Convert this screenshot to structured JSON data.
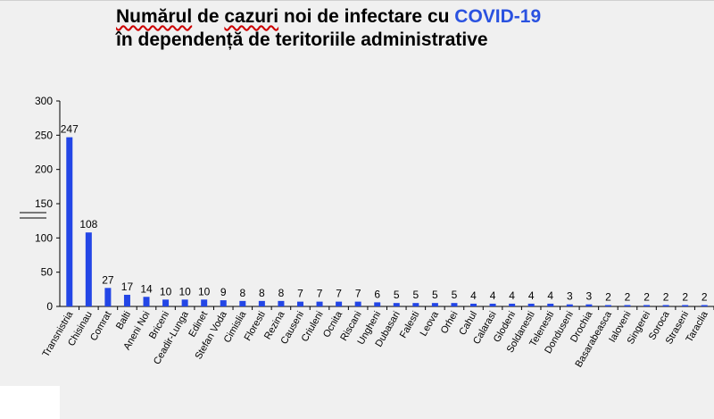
{
  "title": {
    "line1_a": "Numărul",
    "line1_b": " de ",
    "line1_c": "cazuri",
    "line1_d": " noi de infectare cu ",
    "line1_highlight": "COVID-19",
    "line2": "în dependență de teritoriile administrative"
  },
  "colors": {
    "bar": "#2346e6",
    "highlight": "#2a52e0"
  },
  "chart_data": {
    "type": "bar",
    "title": "Numărul de cazuri noi de infectare cu COVID-19 în dependență de teritoriile administrative",
    "xlabel": "",
    "ylabel": "",
    "ylim": [
      0,
      300
    ],
    "yticks": [
      0,
      50,
      100,
      150,
      200,
      250,
      300
    ],
    "grid": false,
    "categories": [
      "Transnistria",
      "Chisinau",
      "Comrat",
      "Balti",
      "Aneni Noi",
      "Briceni",
      "Ceadir-Lunga",
      "Edinet",
      "Stefan Voda",
      "Cimislia",
      "Floresti",
      "Rezina",
      "Causeni",
      "Criuleni",
      "Ocnita",
      "Riscani",
      "Ungheni",
      "Dubasari",
      "Falesti",
      "Leova",
      "Orhei",
      "Cahul",
      "Calarasi",
      "Glodeni",
      "Soldanesti",
      "Telenesti",
      "Donduseni",
      "Drochia",
      "Basarabeasca",
      "Ialoveni",
      "Singerei",
      "Soroca",
      "Straseni",
      "Taraclia"
    ],
    "values": [
      247,
      108,
      27,
      17,
      14,
      10,
      10,
      10,
      9,
      8,
      8,
      8,
      7,
      7,
      7,
      7,
      6,
      5,
      5,
      5,
      5,
      4,
      4,
      4,
      4,
      4,
      3,
      3,
      2,
      2,
      2,
      2,
      2,
      2
    ]
  }
}
